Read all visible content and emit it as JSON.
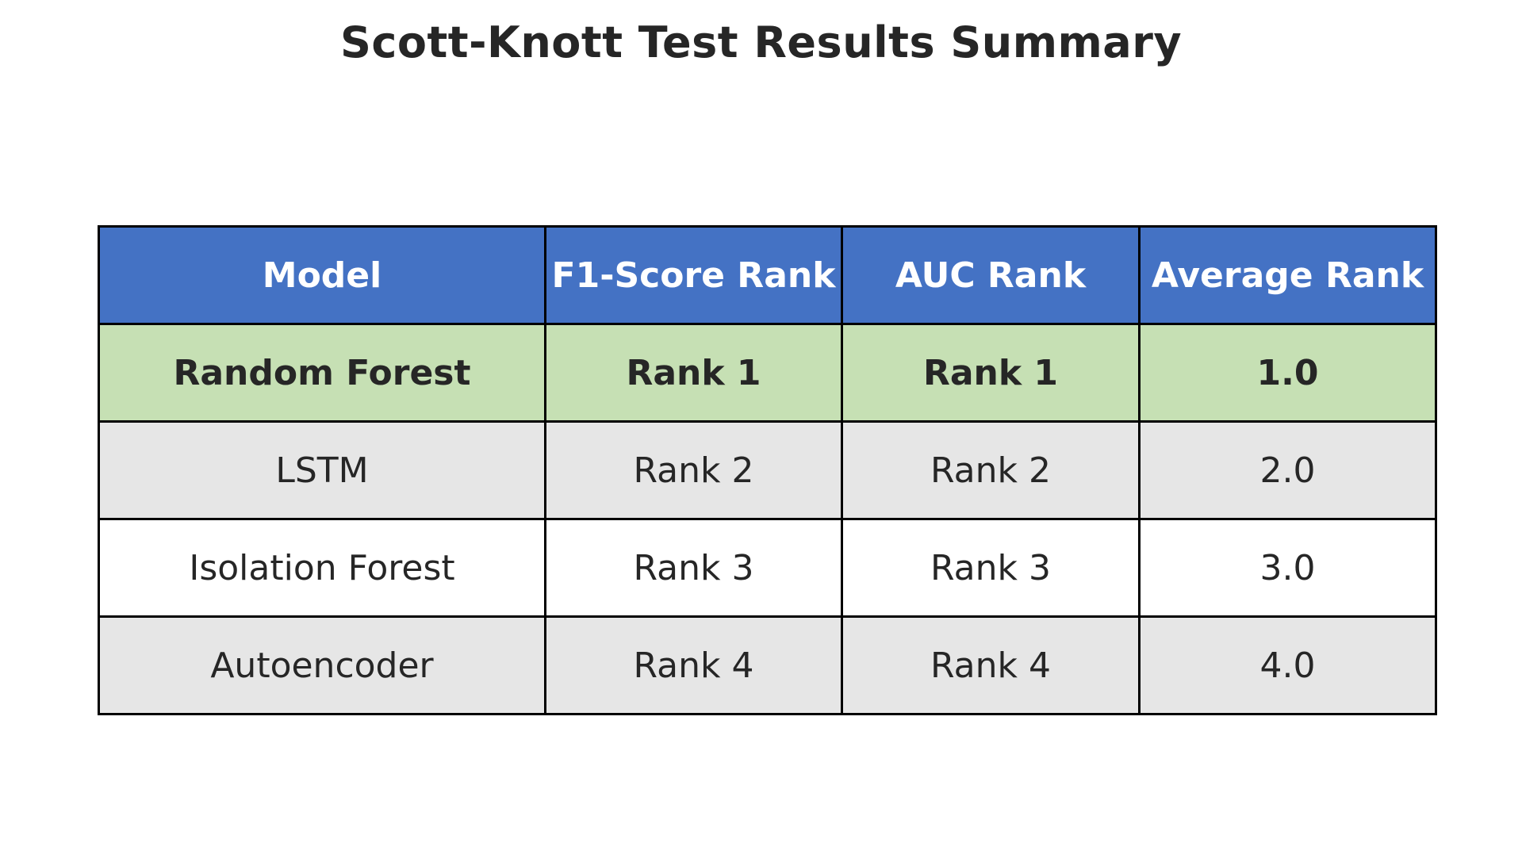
{
  "chart_data": {
    "type": "table",
    "title": "Scott-Knott Test Results Summary",
    "columns": [
      "Model",
      "F1-Score Rank",
      "AUC Rank",
      "Average Rank"
    ],
    "rows": [
      [
        "Random Forest",
        "Rank 1",
        "Rank 1",
        "1.0"
      ],
      [
        "LSTM",
        "Rank 2",
        "Rank 2",
        "2.0"
      ],
      [
        "Isolation Forest",
        "Rank 3",
        "Rank 3",
        "3.0"
      ],
      [
        "Autoencoder",
        "Rank 4",
        "Rank 4",
        "4.0"
      ]
    ],
    "highlighted_row": 0,
    "colors": {
      "header_bg": "#4472c4",
      "header_text": "#ffffff",
      "highlight_bg": "#c6e0b4",
      "alt_row_bg": "#e6e6e6",
      "row_bg": "#ffffff",
      "border": "#000000"
    }
  }
}
